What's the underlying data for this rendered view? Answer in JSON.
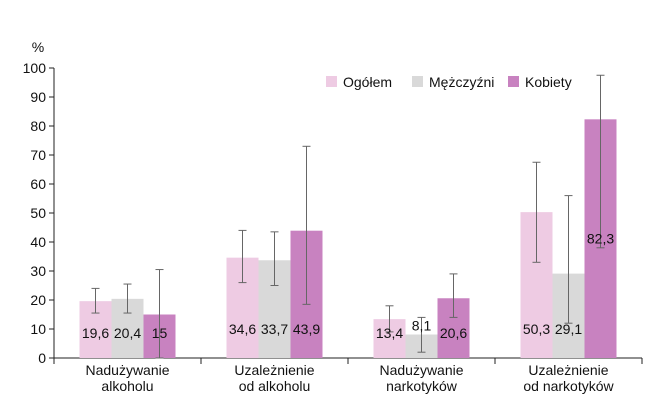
{
  "chart_data": {
    "type": "bar",
    "ylabel": "%",
    "ylim": [
      0,
      100
    ],
    "yticks": [
      0,
      10,
      20,
      30,
      40,
      50,
      60,
      70,
      80,
      90,
      100
    ],
    "grid": false,
    "legend_position": "top-right",
    "categories": [
      [
        "Nadużywanie",
        "alkoholu"
      ],
      [
        "Uzależnienie",
        "od alkoholu"
      ],
      [
        "Nadużywanie",
        "narkotyków"
      ],
      [
        "Uzależnienie",
        "od narkotyków"
      ]
    ],
    "series": [
      {
        "name": "Ogółem",
        "color": "#eecbe3",
        "values": [
          19.6,
          34.6,
          13.4,
          50.3
        ],
        "labels": [
          "19,6",
          "34,6",
          "13,4",
          "50,3"
        ],
        "err_low": [
          15.5,
          26,
          9,
          33
        ],
        "err_high": [
          24,
          44,
          18,
          67.5
        ]
      },
      {
        "name": "Mężczyźni",
        "color": "#d9d9d9",
        "values": [
          20.4,
          33.7,
          8.1,
          29.1
        ],
        "labels": [
          "20,4",
          "33,7",
          "8,1",
          "29,1"
        ],
        "err_low": [
          15.5,
          25,
          2,
          12
        ],
        "err_high": [
          25.5,
          43.5,
          14,
          56
        ]
      },
      {
        "name": "Kobiety",
        "color": "#c882c0",
        "values": [
          15,
          43.9,
          20.6,
          82.3
        ],
        "labels": [
          "15",
          "43,9",
          "20,6",
          "82,3"
        ],
        "err_low": [
          0,
          18.5,
          14,
          38
        ],
        "err_high": [
          30.5,
          73,
          29,
          97.5
        ]
      }
    ]
  }
}
